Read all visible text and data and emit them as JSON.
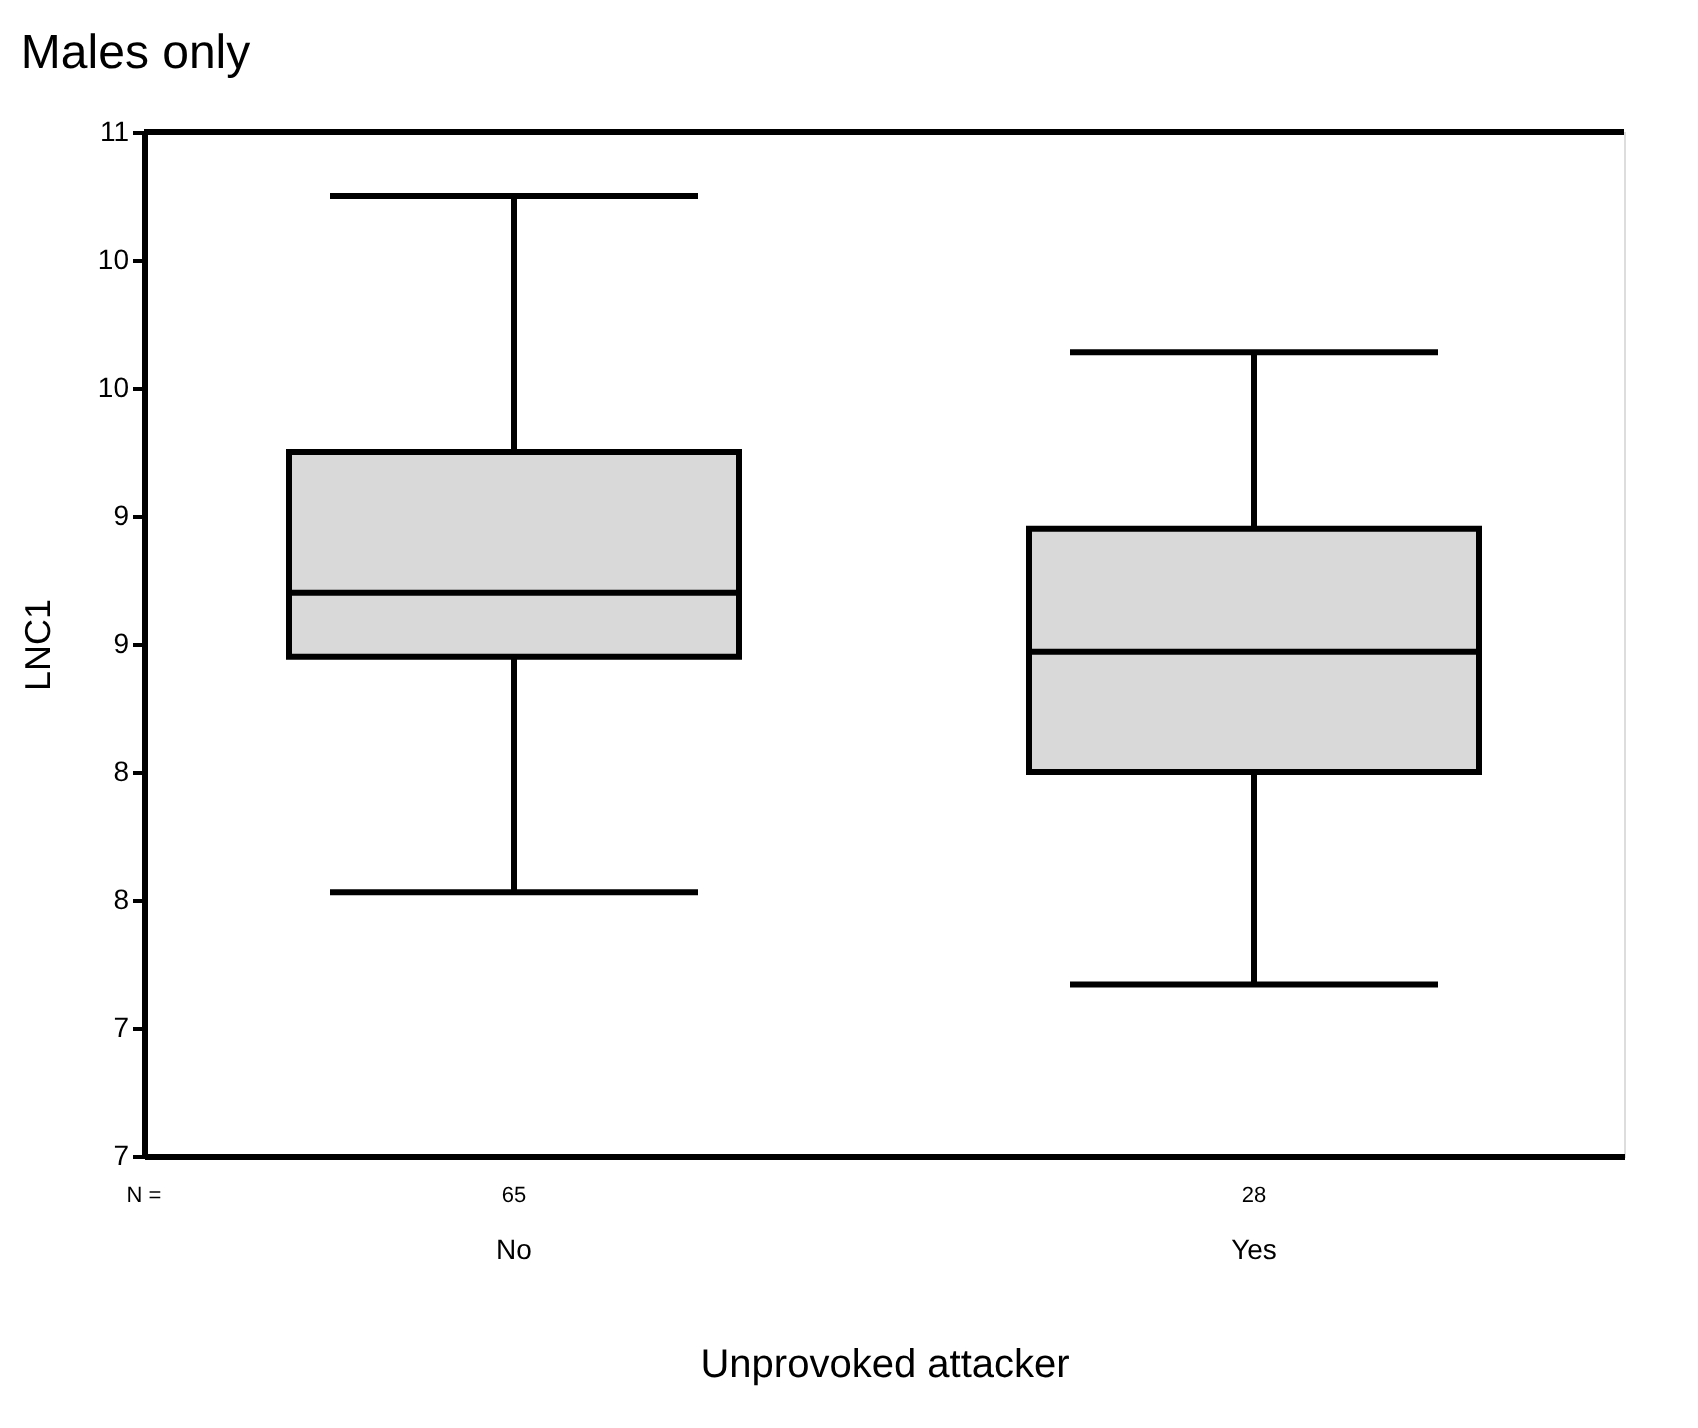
{
  "chart_data": {
    "type": "box",
    "title": "Males only",
    "xlabel": "Unprovoked attacker",
    "ylabel": "LNC1",
    "categories": [
      "No",
      "Yes"
    ],
    "boxes": [
      {
        "low": 7.78,
        "q1": 8.7,
        "median": 8.95,
        "q3": 9.5,
        "high": 10.5
      },
      {
        "low": 7.42,
        "q1": 8.25,
        "median": 8.72,
        "q3": 9.2,
        "high": 9.89
      }
    ],
    "color": "#d9d9d9",
    "ylim": [
      6.75,
      10.75
    ],
    "yticks": [
      {
        "value": 6.75,
        "label": "7"
      },
      {
        "value": 7.25,
        "label": "7"
      },
      {
        "value": 7.75,
        "label": "8"
      },
      {
        "value": 8.25,
        "label": "8"
      },
      {
        "value": 8.75,
        "label": "9"
      },
      {
        "value": 9.25,
        "label": "9"
      },
      {
        "value": 9.75,
        "label": "10"
      },
      {
        "value": 10.25,
        "label": "10"
      },
      {
        "value": 10.75,
        "label": "11"
      }
    ],
    "annotations": [
      "N =",
      "65",
      "28"
    ],
    "grid": false
  }
}
